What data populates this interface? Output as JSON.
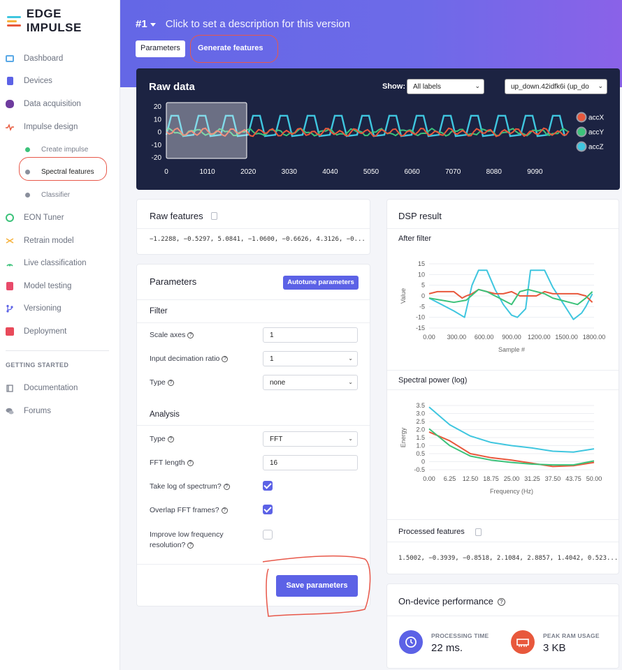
{
  "app": {
    "logo_text": "EDGE IMPULSE"
  },
  "colors": {
    "accent": "#5c62e6",
    "accX": "#e8583c",
    "accY": "#3cc27a",
    "accZ": "#3fc6df",
    "annotation": "#e8584a",
    "dark_panel": "#1c2342"
  },
  "sidebar": {
    "items": [
      {
        "label": "Dashboard",
        "icon": "monitor-icon"
      },
      {
        "label": "Devices",
        "icon": "devices-icon"
      },
      {
        "label": "Data acquisition",
        "icon": "database-icon"
      },
      {
        "label": "Impulse design",
        "icon": "pulse-icon"
      },
      {
        "label": "EON Tuner",
        "icon": "compass-icon"
      },
      {
        "label": "Retrain model",
        "icon": "shuffle-icon"
      },
      {
        "label": "Live classification",
        "icon": "live-icon"
      },
      {
        "label": "Model testing",
        "icon": "clipboard-icon"
      },
      {
        "label": "Versioning",
        "icon": "branch-icon"
      },
      {
        "label": "Deployment",
        "icon": "box-icon"
      }
    ],
    "sub_items": [
      {
        "label": "Create impulse"
      },
      {
        "label": "Spectral features"
      },
      {
        "label": "Classifier"
      }
    ],
    "section_label": "GETTING STARTED",
    "extra_items": [
      {
        "label": "Documentation",
        "icon": "book-icon"
      },
      {
        "label": "Forums",
        "icon": "chat-icon"
      }
    ]
  },
  "header": {
    "version": "#1",
    "description": "Click to set a description for this version",
    "tabs": [
      {
        "label": "Parameters"
      },
      {
        "label": "Generate features"
      }
    ]
  },
  "raw_data": {
    "title": "Raw data",
    "show_label": "Show:",
    "show_value": "All labels",
    "sample_value": "up_down.42idfk6i (up_do",
    "y_ticks": [
      "20",
      "10",
      "0",
      "-10",
      "-20"
    ],
    "x_ticks": [
      "0",
      "1010",
      "2020",
      "3030",
      "4040",
      "5050",
      "6060",
      "7070",
      "8080",
      "9090"
    ],
    "legend": [
      "accX",
      "accY",
      "accZ"
    ]
  },
  "raw_features": {
    "title": "Raw features",
    "values": "−1.2288, −0.5297, 5.0841, −1.0600, −0.6626, 4.3126, −0..."
  },
  "parameters": {
    "title": "Parameters",
    "autotune_label": "Autotune parameters",
    "filter_heading": "Filter",
    "scale_axes_label": "Scale axes",
    "scale_axes_value": "1",
    "decimation_label": "Input decimation ratio",
    "decimation_value": "1",
    "filter_type_label": "Type",
    "filter_type_value": "none",
    "analysis_heading": "Analysis",
    "analysis_type_label": "Type",
    "analysis_type_value": "FFT",
    "fft_length_label": "FFT length",
    "fft_length_value": "16",
    "log_label": "Take log of spectrum?",
    "log_checked": true,
    "overlap_label": "Overlap FFT frames?",
    "overlap_checked": true,
    "improve_label_1": "Improve low frequency",
    "improve_label_2": "resolution?",
    "improve_checked": false,
    "save_label": "Save parameters"
  },
  "dsp": {
    "title": "DSP result",
    "after_filter_title": "After filter",
    "spectral_title": "Spectral power (log)",
    "processed_title": "Processed features",
    "processed_values": "1.5002, −0.3939, −0.8518, 2.1084, 2.8857, 1.4042, 0.523..."
  },
  "chart_data": [
    {
      "type": "line",
      "title": "After filter",
      "xlabel": "Sample #",
      "ylabel": "Value",
      "x_ticks": [
        "0.00",
        "300.00",
        "600.00",
        "900.00",
        "1200.00",
        "1500.00",
        "1800.00"
      ],
      "y_ticks": [
        "15",
        "10",
        "5",
        "0",
        "-5",
        "-10",
        "-15"
      ],
      "xlim": [
        0,
        2000
      ],
      "ylim": [
        -15,
        15
      ],
      "series": [
        {
          "color": "#3fc6df",
          "x": [
            0,
            150,
            300,
            430,
            520,
            600,
            700,
            800,
            900,
            1000,
            1070,
            1170,
            1230,
            1300,
            1400,
            1500,
            1600,
            1700,
            1750,
            1850,
            1900,
            1980
          ],
          "values": [
            -1,
            -4,
            -7,
            -10,
            5,
            12,
            12,
            3,
            -4,
            -9,
            -10,
            -6,
            12,
            12,
            12,
            4,
            -2,
            -8,
            -11,
            -8,
            -5,
            1
          ]
        },
        {
          "color": "#e8583c",
          "x": [
            0,
            100,
            200,
            300,
            400,
            450,
            520,
            600,
            700,
            800,
            900,
            1000,
            1100,
            1200,
            1300,
            1400,
            1500,
            1600,
            1700,
            1800,
            1900,
            1980
          ],
          "values": [
            1,
            2,
            2,
            2,
            -1,
            0,
            1,
            3,
            2,
            1,
            1,
            2,
            0,
            0,
            0,
            2,
            1,
            1,
            1,
            1,
            0,
            -3
          ]
        },
        {
          "color": "#3cc27a",
          "x": [
            0,
            150,
            300,
            450,
            600,
            700,
            800,
            900,
            1000,
            1100,
            1200,
            1300,
            1400,
            1500,
            1600,
            1700,
            1800,
            1900,
            1980
          ],
          "values": [
            -1,
            -2,
            -3,
            -2,
            3,
            2,
            0,
            -2,
            -4,
            2,
            3,
            2,
            1,
            -1,
            -2,
            -3,
            -4,
            -1,
            2
          ]
        }
      ]
    },
    {
      "type": "line",
      "title": "Spectral power (log)",
      "xlabel": "Frequency (Hz)",
      "ylabel": "Energy",
      "x_ticks": [
        "0.00",
        "6.25",
        "12.50",
        "18.75",
        "25.00",
        "31.25",
        "37.50",
        "43.75",
        "50.00"
      ],
      "y_ticks": [
        "3.5",
        "3.0",
        "2.5",
        "2.0",
        "1.5",
        "1.0",
        "0.5",
        "0",
        "-0.5"
      ],
      "xlim": [
        0,
        50
      ],
      "ylim": [
        -0.5,
        3.5
      ],
      "series": [
        {
          "color": "#3fc6df",
          "x": [
            0,
            6.25,
            12.5,
            18.75,
            25,
            31.25,
            37.5,
            43.75,
            50
          ],
          "values": [
            3.4,
            2.3,
            1.6,
            1.2,
            1.0,
            0.85,
            0.65,
            0.6,
            0.8
          ]
        },
        {
          "color": "#e8583c",
          "x": [
            0,
            6.25,
            12.5,
            18.75,
            25,
            31.25,
            37.5,
            43.75,
            50
          ],
          "values": [
            1.85,
            1.3,
            0.5,
            0.25,
            0.1,
            -0.1,
            -0.3,
            -0.25,
            -0.05
          ]
        },
        {
          "color": "#3cc27a",
          "x": [
            0,
            6.25,
            12.5,
            18.75,
            25,
            31.25,
            37.5,
            43.75,
            50
          ],
          "values": [
            2.05,
            1.0,
            0.35,
            0.1,
            -0.05,
            -0.15,
            -0.2,
            -0.2,
            0.05
          ]
        }
      ]
    }
  ],
  "performance": {
    "title": "On-device performance",
    "processing_label": "PROCESSING TIME",
    "processing_value": "22 ms.",
    "ram_label": "PEAK RAM USAGE",
    "ram_value": "3 KB"
  }
}
